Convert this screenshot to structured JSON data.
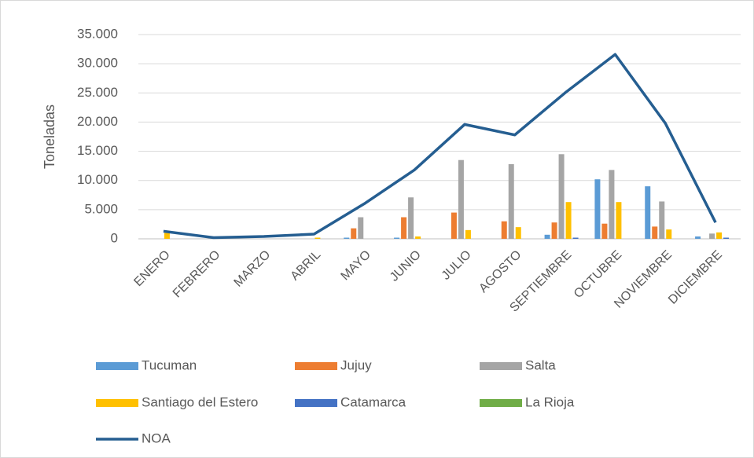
{
  "chart_data": {
    "type": "bar_line",
    "y_label": "Toneladas",
    "categories": [
      "ENERO",
      "FEBRERO",
      "MARZO",
      "ABRIL",
      "MAYO",
      "JUNIO",
      "JULIO",
      "AGOSTO",
      "SEPTIEMBRE",
      "OCTUBRE",
      "NOVIEMBRE",
      "DICIEMBRE"
    ],
    "series": [
      {
        "name": "Tucuman",
        "color": "#5b9bd5",
        "kind": "bar",
        "values": [
          0,
          0,
          0,
          0,
          200,
          200,
          0,
          0,
          700,
          10200,
          9000,
          400
        ]
      },
      {
        "name": "Jujuy",
        "color": "#ed7d31",
        "kind": "bar",
        "values": [
          0,
          0,
          0,
          0,
          1800,
          3700,
          4500,
          3000,
          2800,
          2600,
          2100,
          0
        ]
      },
      {
        "name": "Salta",
        "color": "#a5a5a5",
        "kind": "bar",
        "values": [
          0,
          0,
          0,
          0,
          3700,
          7100,
          13500,
          12800,
          14500,
          11800,
          6400,
          900
        ]
      },
      {
        "name": "Santiago del Estero",
        "color": "#ffc000",
        "kind": "bar",
        "values": [
          1000,
          0,
          0,
          200,
          0,
          400,
          1500,
          2000,
          6300,
          6300,
          1600,
          1100
        ]
      },
      {
        "name": "Catamarca",
        "color": "#4472c4",
        "kind": "bar",
        "values": [
          0,
          0,
          0,
          0,
          0,
          0,
          0,
          0,
          200,
          0,
          0,
          200
        ]
      },
      {
        "name": "La Rioja",
        "color": "#70ad47",
        "kind": "bar",
        "values": [
          0,
          0,
          0,
          0,
          0,
          0,
          0,
          0,
          0,
          0,
          0,
          0
        ]
      },
      {
        "name": "NOA",
        "color": "#255e91",
        "kind": "line",
        "values": [
          1300,
          200,
          400,
          800,
          6000,
          11800,
          19600,
          17800,
          25000,
          31600,
          19800,
          2800
        ]
      }
    ],
    "ylim": [
      0,
      35000
    ],
    "yticks": [
      0,
      {
        "value": 5000,
        "label": "5.000"
      },
      {
        "value": 10000,
        "label": "10.000"
      },
      {
        "value": 15000,
        "label": "15.000"
      },
      {
        "value": 20000,
        "label": "20.000"
      },
      {
        "value": 25000,
        "label": "25.000"
      },
      {
        "value": 30000,
        "label": "30.000"
      },
      {
        "value": 35000,
        "label": "35.000"
      }
    ],
    "grid": true,
    "legend": "bottom"
  }
}
